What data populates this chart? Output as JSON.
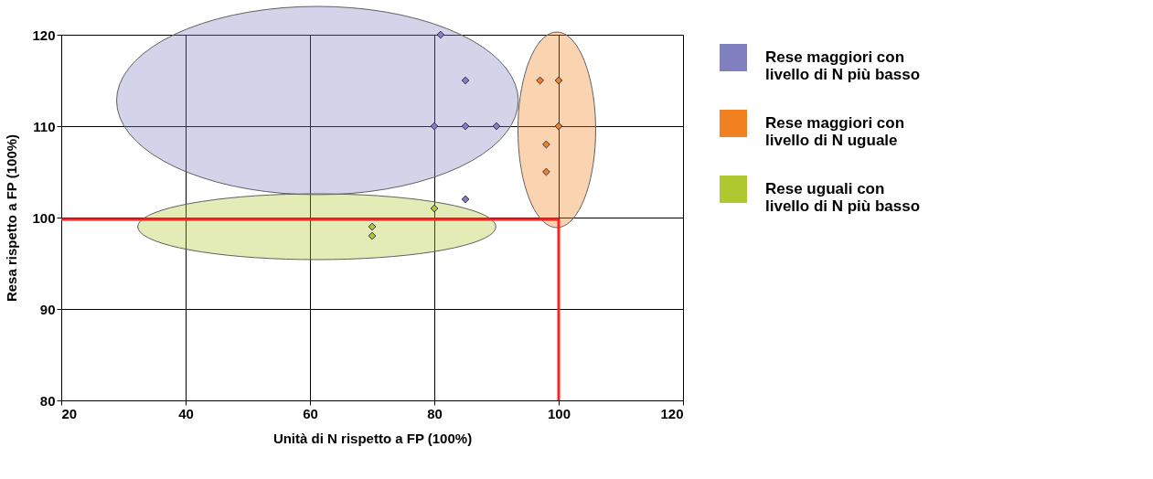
{
  "chart_data": {
    "type": "scatter",
    "xlabel": "Unità di N rispetto a FP (100%)",
    "ylabel": "Resa rispetto a FP (100%)",
    "xlim": [
      20,
      120
    ],
    "xticks": [
      20,
      40,
      60,
      80,
      100,
      120
    ],
    "ylim": [
      80,
      120
    ],
    "yticks": [
      80,
      90,
      100,
      110,
      120
    ],
    "grid": true,
    "legend": "right",
    "marker": "diamond",
    "series": [
      {
        "name": "Rese maggiori con livello di N più basso",
        "color": "#8080c0",
        "x": [
          81,
          85,
          80,
          85,
          90,
          85
        ],
        "values": [
          120,
          115,
          110,
          110,
          110,
          102
        ]
      },
      {
        "name": "Rese maggiori con livello di N uguale",
        "color": "#f08020",
        "x": [
          97,
          100,
          100,
          98,
          98
        ],
        "values": [
          115,
          115,
          110,
          108,
          105
        ]
      },
      {
        "name": "Rese uguali con livello di N più basso",
        "color": "#b0c830",
        "x": [
          70,
          70,
          80
        ],
        "values": [
          99,
          98,
          101
        ]
      }
    ],
    "ref_lines": [
      {
        "axis": "y",
        "value": 99.8,
        "color": "#ff2020"
      },
      {
        "axis": "x",
        "value": 100,
        "color": "#ff2020"
      }
    ]
  }
}
